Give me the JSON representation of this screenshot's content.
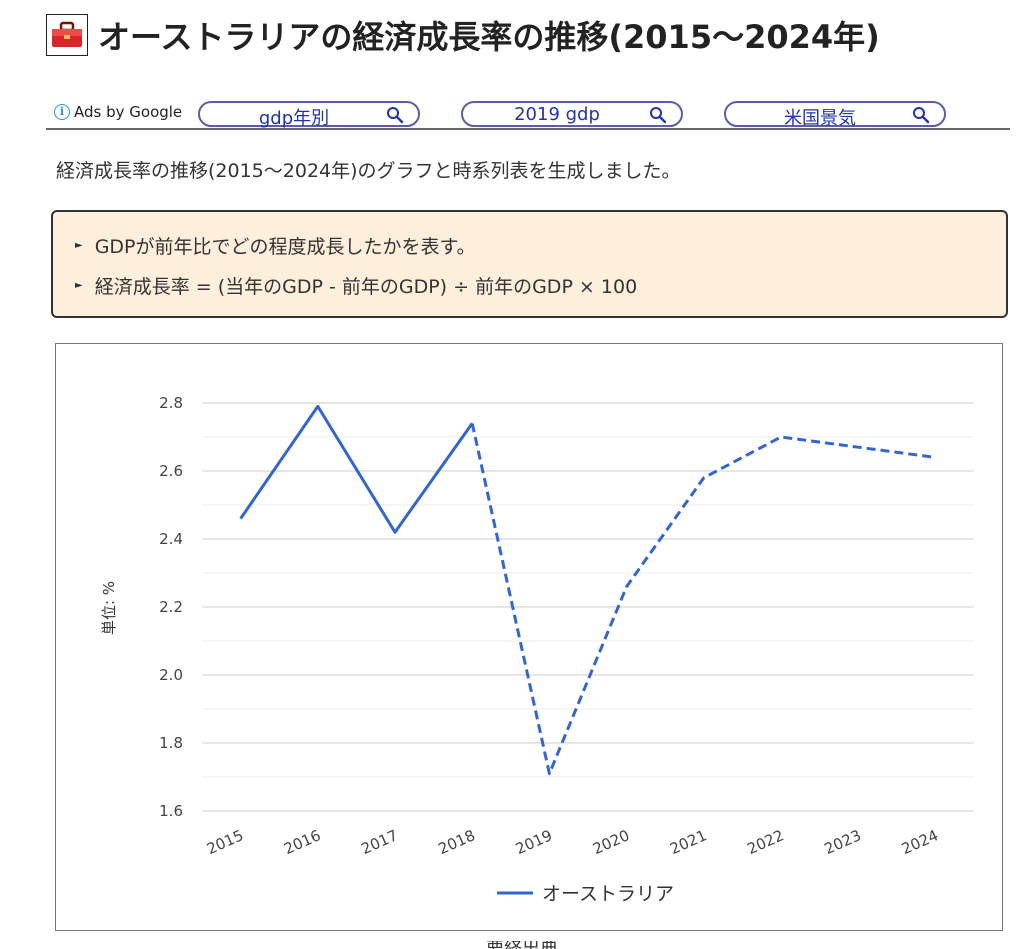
{
  "page": {
    "title": "オーストラリアの経済成長率の推移(2015～2024年)",
    "intro": "経済成長率の推移(2015～2024年)のグラフと時系列表を生成しました。"
  },
  "ads": {
    "label": "Ads by Google",
    "pills": [
      {
        "label": "gdp年別"
      },
      {
        "label": "2019 gdp"
      },
      {
        "label": "米国景気"
      }
    ]
  },
  "info": {
    "bullets": [
      "GDPが前年比でどの程度成長したかを表す。",
      "経済成長率 = (当年のGDP - 前年のGDP) ÷ 前年のGDP × 100"
    ]
  },
  "colors": {
    "series": "#3366cc",
    "info_bg": "#feeedc",
    "ad_text": "#2233aa"
  },
  "chart_data": {
    "type": "line",
    "ylabel": "単位: %",
    "x": [
      "2015",
      "2016",
      "2017",
      "2018",
      "2019",
      "2020",
      "2021",
      "2022",
      "2023",
      "2024"
    ],
    "ylim": [
      1.6,
      2.8
    ],
    "yticks": [
      "1.6",
      "1.8",
      "2.0",
      "2.2",
      "2.4",
      "2.6",
      "2.8"
    ],
    "grid": true,
    "legend": "bottom",
    "series": [
      {
        "name": "オーストラリア",
        "values": [
          2.46,
          2.79,
          2.42,
          2.74,
          1.71,
          2.26,
          2.58,
          2.7,
          2.67,
          2.64
        ],
        "dashed_from": "2018"
      }
    ]
  },
  "footer": {
    "partial_text": "要経出典"
  }
}
